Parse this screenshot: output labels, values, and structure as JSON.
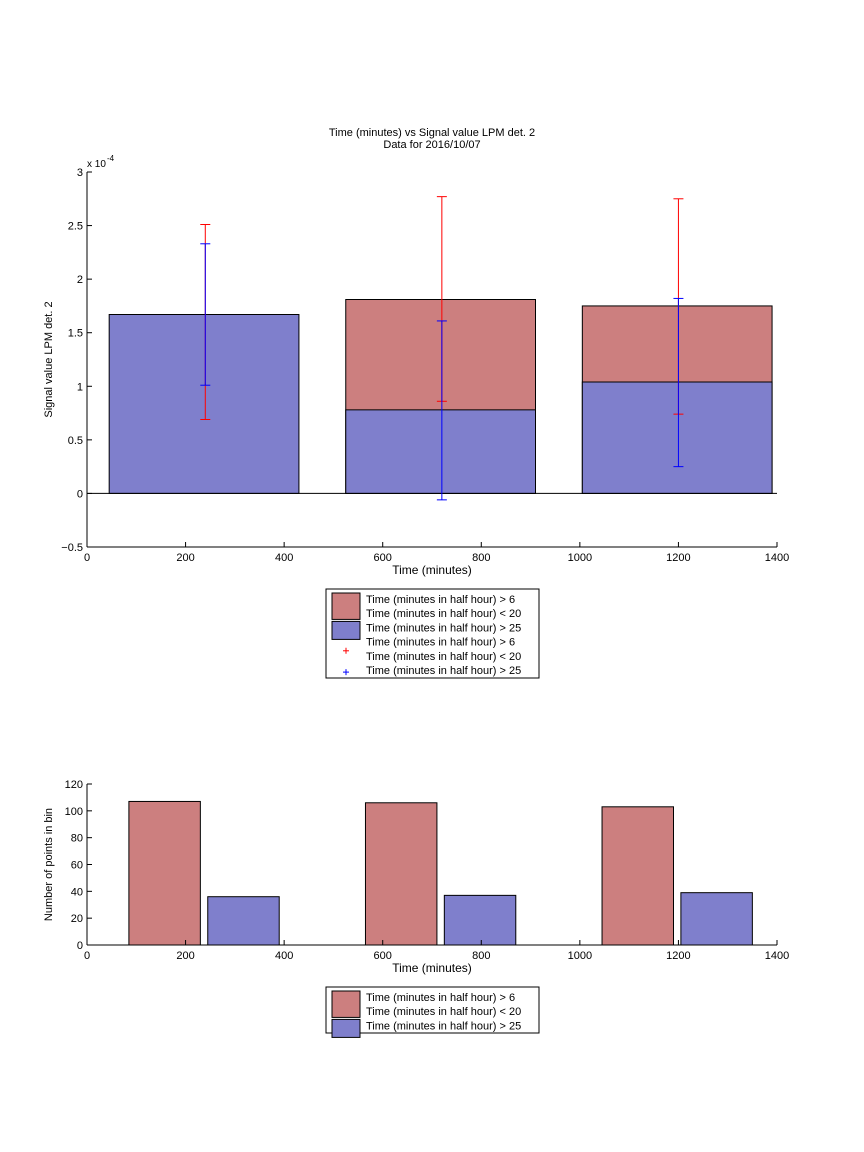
{
  "colors": {
    "red_fill": "#cc7f7f",
    "blue_fill": "#7f7fcc",
    "red_err": "#ff0000",
    "blue_err": "#0000ff"
  },
  "chart_data": [
    {
      "type": "bar",
      "title_lines": [
        "Time (minutes) vs Signal value LPM det. 2",
        "Data for 2016/10/07"
      ],
      "xlabel": "Time (minutes)",
      "ylabel": "Signal value LPM det. 2",
      "exponent_label": "x 10",
      "exponent_power": "-4",
      "xlim": [
        0,
        1400
      ],
      "ylim": [
        -0.5,
        3
      ],
      "xticks": [
        0,
        200,
        400,
        600,
        800,
        1000,
        1200,
        1400
      ],
      "yticks": [
        -0.5,
        0,
        0.5,
        1,
        1.5,
        2,
        2.5,
        3
      ],
      "ytick_labels": [
        "−0.5",
        "0",
        "0.5",
        "1",
        "1.5",
        "2",
        "2.5",
        "3"
      ],
      "grid": false,
      "bars": [
        {
          "x0": 45,
          "x1": 430,
          "stacked": [
            {
              "series": "red",
              "value": 0
            },
            {
              "series": "blue",
              "value": 1.67
            }
          ]
        },
        {
          "x0": 525,
          "x1": 910,
          "stacked": [
            {
              "series": "blue",
              "value": 0.78
            },
            {
              "series": "red",
              "value": 1.81
            }
          ]
        },
        {
          "x0": 1005,
          "x1": 1390,
          "stacked": [
            {
              "series": "blue",
              "value": 1.04
            },
            {
              "series": "red",
              "value": 1.75
            }
          ]
        }
      ],
      "errorbars": [
        {
          "series": "red",
          "x": 240,
          "low": 0.69,
          "high": 2.51
        },
        {
          "series": "red",
          "x": 720,
          "low": 0.86,
          "high": 2.77
        },
        {
          "series": "red",
          "x": 1200,
          "low": 0.74,
          "high": 2.75
        },
        {
          "series": "blue",
          "x": 240,
          "low": 1.01,
          "high": 2.33
        },
        {
          "series": "blue",
          "x": 720,
          "low": -0.06,
          "high": 1.61
        },
        {
          "series": "blue",
          "x": 1200,
          "low": 0.25,
          "high": 1.82
        }
      ],
      "legend": {
        "placement": "bottom",
        "entries": [
          {
            "kind": "patch",
            "series": "red",
            "lines": [
              "Time (minutes in half hour) > 6",
              "Time (minutes in half hour) < 20"
            ]
          },
          {
            "kind": "patch",
            "series": "blue",
            "lines": [
              "Time (minutes in half hour) > 25"
            ]
          },
          {
            "kind": "marker",
            "series": "red",
            "lines": [
              "Time (minutes in half hour) > 6",
              "Time (minutes in half hour) < 20"
            ]
          },
          {
            "kind": "marker",
            "series": "blue",
            "lines": [
              "Time (minutes in half hour) > 25"
            ]
          }
        ]
      }
    },
    {
      "type": "bar",
      "title_lines": [],
      "xlabel": "Time (minutes)",
      "ylabel": "Number of points in bin",
      "xlim": [
        0,
        1400
      ],
      "ylim": [
        0,
        120
      ],
      "xticks": [
        0,
        200,
        400,
        600,
        800,
        1000,
        1200,
        1400
      ],
      "yticks": [
        0,
        20,
        40,
        60,
        80,
        100,
        120
      ],
      "ytick_labels": [
        "0",
        "20",
        "40",
        "60",
        "80",
        "100",
        "120"
      ],
      "grid": false,
      "bars": [
        {
          "x0": 85,
          "x1": 230,
          "series": "red",
          "value": 107
        },
        {
          "x0": 245,
          "x1": 390,
          "series": "blue",
          "value": 36
        },
        {
          "x0": 565,
          "x1": 710,
          "series": "red",
          "value": 106
        },
        {
          "x0": 725,
          "x1": 870,
          "series": "blue",
          "value": 37
        },
        {
          "x0": 1045,
          "x1": 1190,
          "series": "red",
          "value": 103
        },
        {
          "x0": 1205,
          "x1": 1350,
          "series": "blue",
          "value": 39
        }
      ],
      "legend": {
        "placement": "bottom",
        "entries": [
          {
            "kind": "patch",
            "series": "red",
            "lines": [
              "Time (minutes in half hour) > 6",
              "Time (minutes in half hour) < 20"
            ]
          },
          {
            "kind": "patch",
            "series": "blue",
            "lines": [
              "Time (minutes in half hour) > 25"
            ]
          }
        ]
      }
    }
  ]
}
